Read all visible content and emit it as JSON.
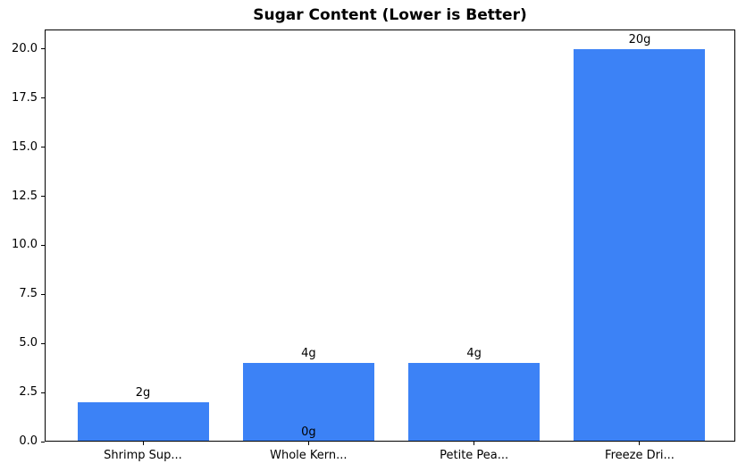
{
  "chart_data": {
    "type": "bar",
    "title": "Sugar Content (Lower is Better)",
    "categories": [
      "Shrimp Sup...",
      "Whole Kern...",
      "Petite Pea...",
      "Freeze Dri..."
    ],
    "values": [
      2,
      4,
      4,
      20
    ],
    "bar_labels": [
      "2g",
      "4g",
      "4g",
      "20g"
    ],
    "annotations": [
      {
        "text": "0g",
        "category_index": 1,
        "value": 0
      }
    ],
    "y_ticks": [
      0,
      2.5,
      5,
      7.5,
      10,
      12.5,
      15,
      17.5,
      20
    ],
    "y_tick_labels": [
      "0.0",
      "2.5",
      "5.0",
      "7.5",
      "10.0",
      "12.5",
      "15.0",
      "17.5",
      "20.0"
    ],
    "ylim": [
      0,
      21
    ],
    "xlabel": "",
    "ylabel": "",
    "legend": null,
    "grid": false,
    "bar_color": "#3c82f6",
    "axis_color": "#000000",
    "text_color": "#000000",
    "background_color": "#ffffff"
  }
}
